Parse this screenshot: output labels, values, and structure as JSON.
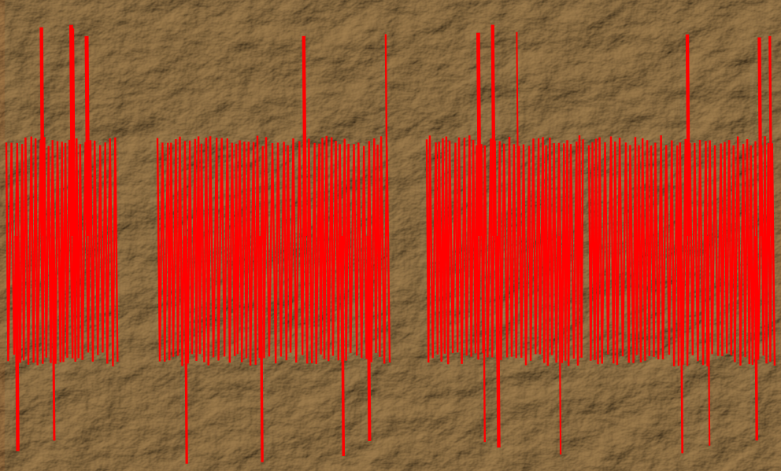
{
  "image": {
    "kind": "dense red vertical stroke pattern over crumpled paper texture",
    "colors": {
      "paper_base": "#b49a72",
      "paper_light": "#d9c6a4",
      "paper_dark": "#6e5638",
      "stroke": "#ff0000",
      "left_edge": "#ff4a10"
    },
    "stroke_groups": [
      {
        "name": "group-1",
        "density": "high",
        "has_tall_spikes": true
      },
      {
        "name": "group-2",
        "density": "high",
        "has_tall_spikes": true
      },
      {
        "name": "group-3",
        "density": "high",
        "has_tall_spikes": true
      },
      {
        "name": "group-4",
        "density": "high",
        "has_tall_spikes": true
      }
    ]
  }
}
